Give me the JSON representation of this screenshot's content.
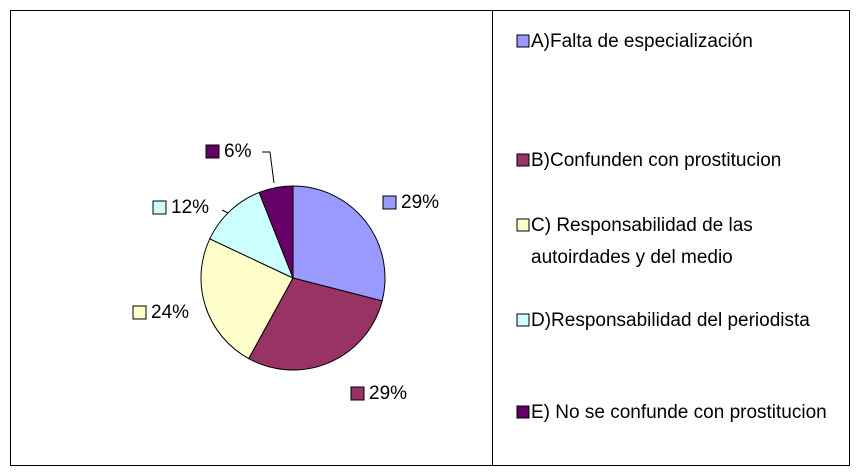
{
  "chart_data": {
    "type": "pie",
    "categories": [
      "A)Falta de especialización",
      "B)Confunden con prostitucion",
      "C) Responsabilidad de las autoirdades y del medio",
      "D)Responsabilidad del periodista",
      "E) No se confunde con prostitucion"
    ],
    "values": [
      29,
      29,
      24,
      12,
      6
    ],
    "value_labels": [
      "29%",
      "29%",
      "24%",
      "12%",
      "6%"
    ],
    "colors": [
      "#9999ff",
      "#993366",
      "#ffffcc",
      "#ccffff",
      "#660066"
    ],
    "legend": "right"
  }
}
